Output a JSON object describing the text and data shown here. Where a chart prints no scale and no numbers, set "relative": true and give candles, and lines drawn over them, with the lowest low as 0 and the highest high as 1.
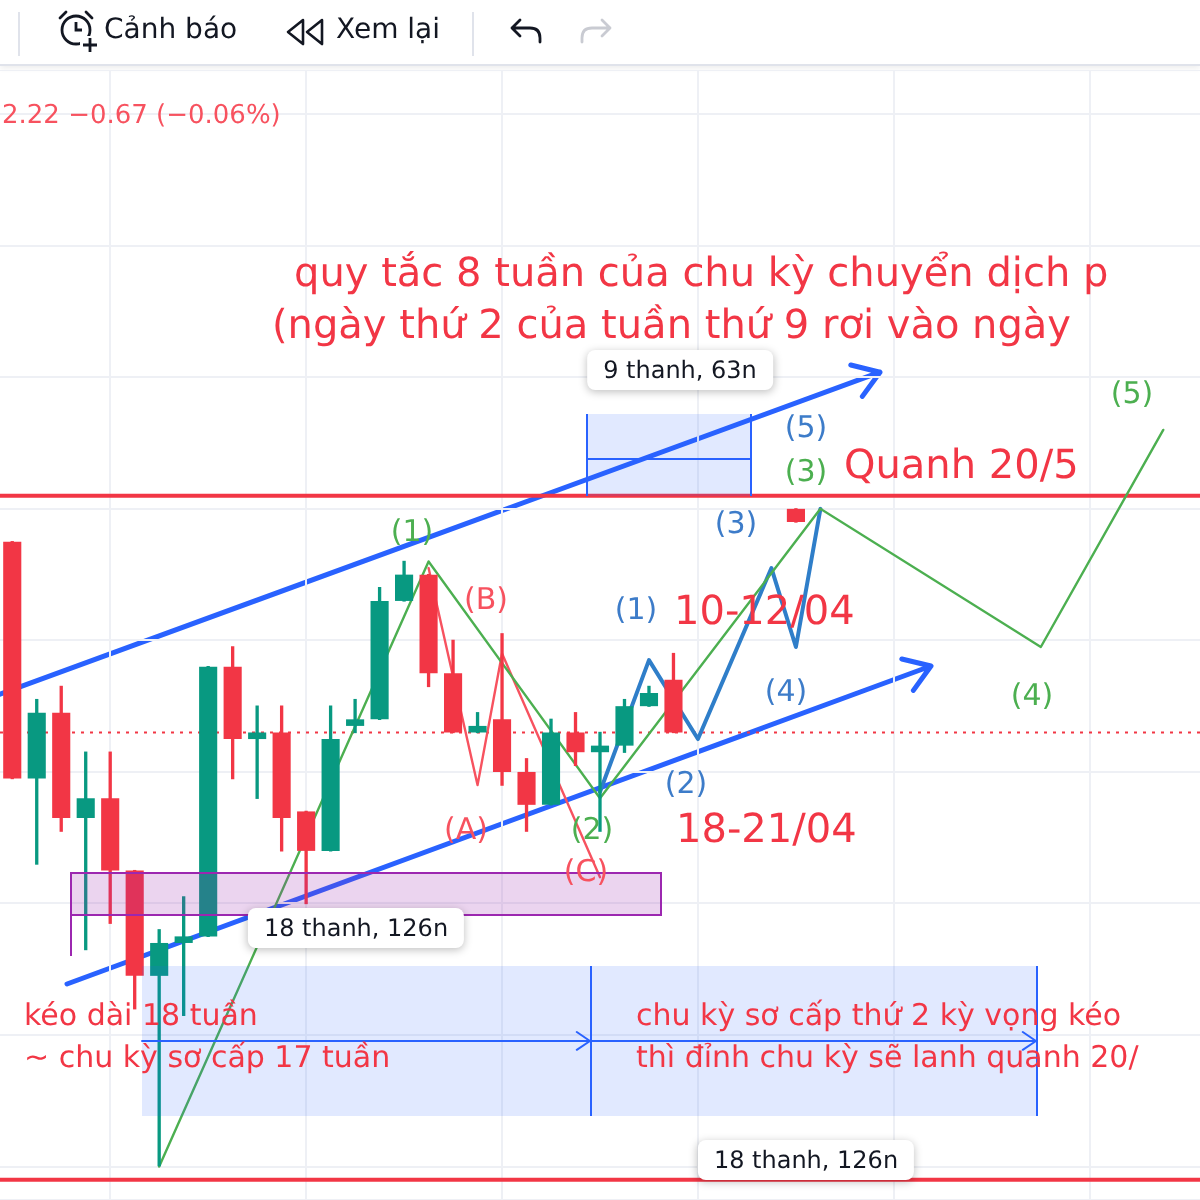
{
  "chart_data": {
    "type": "candlestick",
    "relative": true,
    "grid": true,
    "categories": [
      null,
      null,
      null,
      null,
      null,
      null,
      null,
      null,
      null,
      null,
      null,
      null,
      null,
      null,
      null,
      null,
      null,
      null,
      null,
      null,
      null,
      null,
      null,
      null,
      null,
      null,
      null,
      null,
      null,
      null,
      null,
      null,
      null,
      null,
      null,
      null,
      null,
      null,
      null,
      null,
      null,
      null,
      null,
      null,
      null,
      null,
      null,
      null,
      null
    ],
    "ohlc": [
      [
        0.95,
        0.95,
        0.59,
        0.59
      ],
      [
        0.59,
        0.71,
        0.46,
        0.69
      ],
      [
        0.69,
        0.73,
        0.51,
        0.53
      ],
      [
        0.53,
        0.63,
        0.33,
        0.56
      ],
      [
        0.56,
        0.63,
        0.37,
        0.45
      ],
      [
        0.45,
        0.45,
        0.24,
        0.29
      ],
      [
        0.29,
        0.36,
        0,
        0.34
      ],
      [
        0.34,
        0.41,
        0.23,
        0.35
      ],
      [
        0.35,
        0.76,
        0.35,
        0.76
      ],
      [
        0.76,
        0.79,
        0.59,
        0.65
      ],
      [
        0.65,
        0.7,
        0.56,
        0.66
      ],
      [
        0.66,
        0.7,
        0.48,
        0.53
      ],
      [
        0.54,
        0.54,
        0.4,
        0.48
      ],
      [
        0.48,
        0.7,
        0.48,
        0.65
      ],
      [
        0.67,
        0.71,
        0.66,
        0.68
      ],
      [
        0.68,
        0.88,
        0.68,
        0.86
      ],
      [
        0.86,
        0.92,
        0.86,
        0.9
      ],
      [
        0.9,
        0.9,
        0.73,
        0.75
      ],
      [
        0.75,
        0.8,
        0.66,
        0.66
      ],
      [
        0.66,
        0.69,
        0.66,
        0.67
      ],
      [
        0.68,
        0.81,
        0.58,
        0.6
      ],
      [
        0.6,
        0.62,
        0.51,
        0.55
      ],
      [
        0.55,
        0.68,
        0.55,
        0.66
      ],
      [
        0.66,
        0.69,
        0.61,
        0.63
      ],
      [
        0.63,
        0.66,
        0.51,
        0.64
      ],
      [
        0.64,
        0.71,
        0.63,
        0.7
      ],
      [
        0.7,
        0.73,
        0.7,
        0.72
      ],
      [
        0.74,
        0.78,
        0.66,
        0.66
      ],
      null,
      null,
      null,
      null,
      [
        1,
        1,
        0.98,
        0.98
      ],
      null,
      null,
      null,
      null,
      null,
      null,
      null,
      null,
      null,
      null,
      null,
      null,
      null,
      null,
      null,
      null
    ],
    "colors": [
      "#f23645",
      "#089981",
      "#f23645",
      "#089981",
      "#f23645",
      "#f23645",
      "#089981",
      "#089981",
      "#089981",
      "#f23645",
      "#089981",
      "#f23645",
      "#f23645",
      "#089981",
      "#089981",
      "#089981",
      "#089981",
      "#f23645",
      "#f23645",
      "#089981",
      "#f23645",
      "#f23645",
      "#089981",
      "#f23645",
      "#089981",
      "#089981",
      "#089981",
      "#f23645",
      null,
      null,
      null,
      null,
      "#f23645",
      null,
      null,
      null,
      null,
      null,
      null,
      null,
      null,
      null,
      null,
      null,
      null,
      null,
      null,
      null,
      null
    ],
    "series": [
      {
        "type": "line",
        "color": "#4caf50",
        "values": [
          null,
          null,
          null,
          null,
          null,
          null,
          0,
          null,
          null,
          null,
          null,
          null,
          null,
          null,
          null,
          null,
          null,
          0.92,
          null,
          null,
          null,
          null,
          null,
          null,
          0.56,
          null,
          null,
          null,
          null,
          null,
          null,
          null,
          null,
          1,
          null,
          null,
          null,
          null,
          null,
          null,
          null,
          null,
          0.79,
          null,
          null,
          null,
          null,
          1.12,
          null
        ]
      },
      {
        "type": "line",
        "color": "#f7525f",
        "values": [
          null,
          null,
          null,
          null,
          null,
          null,
          null,
          null,
          null,
          null,
          null,
          null,
          null,
          null,
          null,
          null,
          null,
          0.91,
          null,
          0.58,
          0.78,
          null,
          null,
          null,
          0.44,
          null,
          null,
          null,
          null,
          null,
          null,
          null,
          null,
          null,
          null,
          null,
          null,
          null,
          null,
          null,
          null,
          null,
          null,
          null,
          null,
          null,
          null,
          null,
          null
        ]
      },
      {
        "type": "line",
        "color": "#2f7ec9",
        "values": [
          null,
          null,
          null,
          null,
          null,
          null,
          null,
          null,
          null,
          null,
          null,
          null,
          null,
          null,
          null,
          null,
          null,
          null,
          null,
          null,
          null,
          null,
          null,
          null,
          0.57,
          null,
          0.77,
          null,
          0.65,
          null,
          null,
          0.91,
          0.79,
          1,
          null,
          null,
          null,
          null,
          null,
          null,
          null,
          null,
          null,
          null,
          null,
          null,
          null,
          null,
          null
        ]
      }
    ],
    "ref_lines": [
      {
        "axis": "y",
        "value": 1.02,
        "color": "#f23645"
      },
      {
        "axis": "y",
        "value": -0.02,
        "color": "#f23645"
      },
      {
        "axis": "y",
        "value": 0.66,
        "color": "#f23645",
        "line_style": "dotted"
      }
    ],
    "annotations": [
      "Cảnh báo",
      "Xem lại",
      "2.22 −0.67 (−0.06%)",
      "quy tắc 8 tuần của chu kỳ chuyển dịch p",
      "(ngày thứ 2 của tuần thứ 9 rơi vào ngày",
      "9 thanh, 63n",
      "Quanh 20/5",
      "10-12/04",
      "18-21/04",
      "18 thanh, 126n",
      "kéo dài 18 tuần",
      "~ chu kỳ sơ cấp 17 tuần",
      "chu kỳ sơ cấp thứ 2 kỳ vọng kéo",
      "thì đỉnh chu kỳ sẽ lanh quanh 20/",
      "18 thanh, 126n",
      "(1)",
      "(2)",
      "(3)",
      "(4)",
      "(5)",
      "(A)",
      "(B)",
      "(C)",
      "(1)",
      "(2)",
      "(3)",
      "(4)",
      "(5)"
    ]
  }
}
